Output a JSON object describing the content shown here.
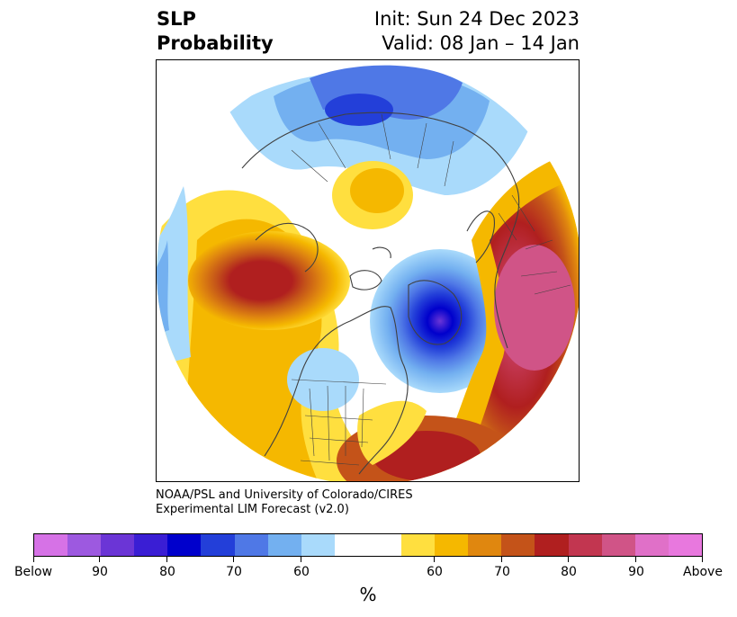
{
  "title": {
    "left_line1": "SLP",
    "left_line2": "Probability",
    "right_line1": "Init: Sun 24 Dec 2023",
    "right_line2": "Valid: 08 Jan – 14 Jan"
  },
  "credit": {
    "line1": "NOAA/PSL and University of Colorado/CIRES",
    "line2": "Experimental LIM Forecast (v2.0)"
  },
  "colorbar": {
    "units": "%",
    "colors": [
      "#d672e6",
      "#9d59e0",
      "#6b35d6",
      "#3a1ed4",
      "#0000cc",
      "#233fd9",
      "#4f78e6",
      "#73b0f0",
      "#a9dafb",
      "#ffffff",
      "#ffffff",
      "#ffdf3f",
      "#f5b800",
      "#e0870f",
      "#c45319",
      "#b01f1f",
      "#c23650",
      "#d05487",
      "#e070c8",
      "#e878de"
    ],
    "tick_labels": [
      "Below",
      "90",
      "80",
      "70",
      "60",
      "60",
      "70",
      "80",
      "90",
      "Above"
    ]
  },
  "map": {
    "projection": "north-polar-stereographic",
    "region": "Northern Hemisphere",
    "features": [
      "coastlines",
      "country-borders",
      "us-state-borders"
    ]
  }
}
